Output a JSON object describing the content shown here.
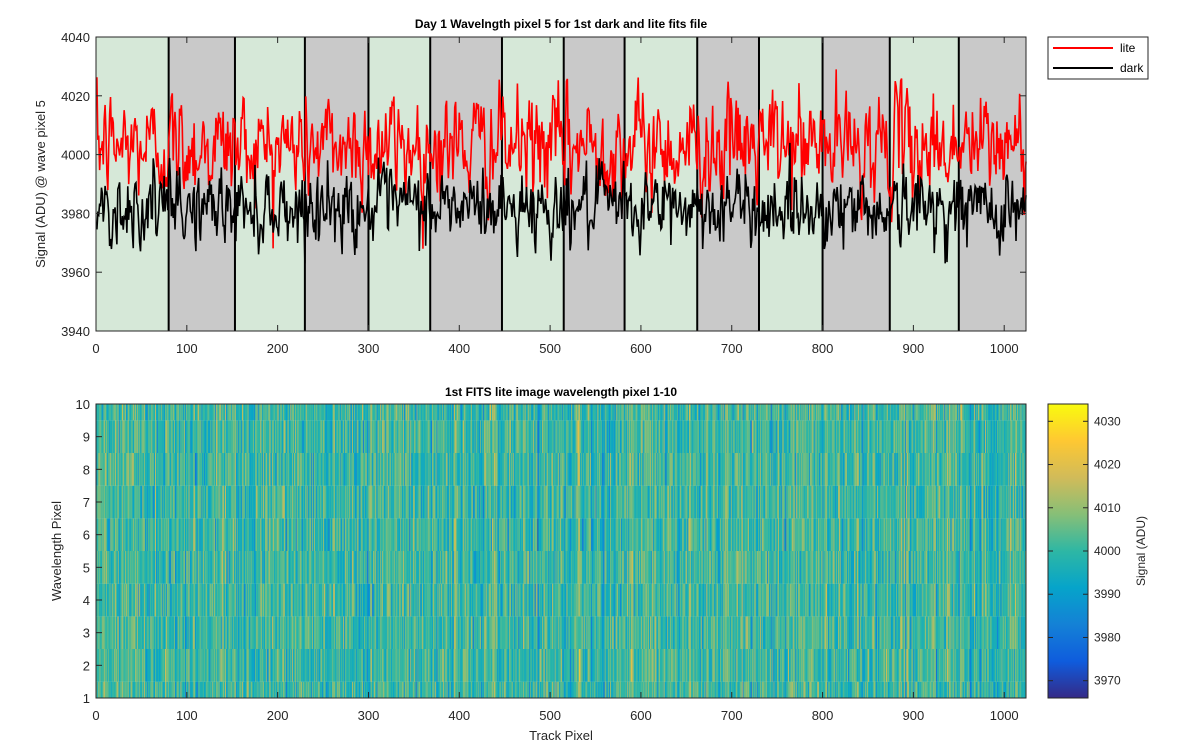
{
  "chart_data": [
    {
      "type": "line",
      "title": "Day 1 Wavelngth pixel 5 for 1st dark and lite fits file",
      "xlabel": "",
      "ylabel": "Signal (ADU) @ wave pixel 5",
      "xlim": [
        0,
        1024
      ],
      "ylim": [
        3940,
        4040
      ],
      "x_ticks": [
        "0",
        "100",
        "200",
        "300",
        "400",
        "500",
        "600",
        "700",
        "800",
        "900",
        "1000"
      ],
      "y_ticks": [
        "3940",
        "3960",
        "3980",
        "4000",
        "4020",
        "4040"
      ],
      "grid": false,
      "legend_position": "outside-top-right",
      "segment_boundaries": [
        0,
        80,
        153,
        230,
        300,
        368,
        447,
        515,
        582,
        662,
        730,
        800,
        874,
        950,
        1024
      ],
      "segment_colors": [
        "#d6e8d8",
        "#c9c9c9"
      ],
      "series": [
        {
          "name": "lite",
          "color": "#ff0000",
          "points": 1024,
          "x_range": [
            1,
            1024
          ],
          "typical_mean": 4003,
          "typical_range": [
            3985,
            4027
          ],
          "extreme_min": 3968,
          "extreme_max": 4029
        },
        {
          "name": "dark",
          "color": "#000000",
          "points": 1024,
          "x_range": [
            1,
            1024
          ],
          "typical_mean": 3982,
          "typical_range": [
            3968,
            3998
          ],
          "extreme_min": 3963,
          "extreme_max": 4004
        }
      ]
    },
    {
      "type": "heatmap",
      "title": "1st FITS lite image wavelength pixel 1-10",
      "xlabel": "Track Pixel",
      "ylabel": "Wavelength Pixel",
      "xlim": [
        0,
        1024
      ],
      "ylim": [
        1,
        10
      ],
      "x_ticks": [
        "0",
        "100",
        "200",
        "300",
        "400",
        "500",
        "600",
        "700",
        "800",
        "900",
        "1000"
      ],
      "y_ticks": [
        "1",
        "2",
        "3",
        "4",
        "5",
        "6",
        "7",
        "8",
        "9",
        "10"
      ],
      "rows": 10,
      "columns": 1024,
      "colormap": "parula",
      "colorbar": {
        "label": "Signal (ADU)",
        "ticks": [
          "3970",
          "3980",
          "3990",
          "4000",
          "4010",
          "4020",
          "4030"
        ],
        "range": [
          3966,
          4034
        ]
      },
      "value_mean": 4001,
      "value_std": 7
    }
  ]
}
